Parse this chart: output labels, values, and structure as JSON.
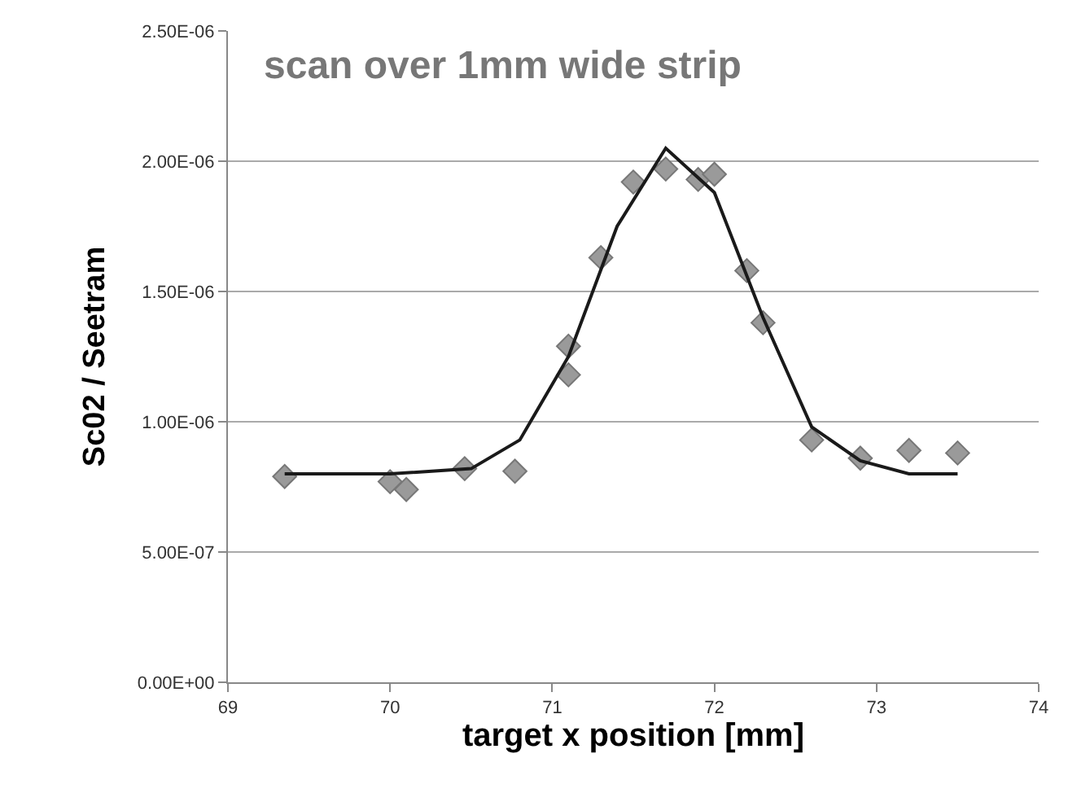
{
  "chart_data": {
    "type": "scatter",
    "title": "scan over 1mm wide strip",
    "xlabel": "target x position [mm]",
    "ylabel": "Sc02 / Seetram",
    "xlim": [
      69,
      74
    ],
    "xticks": [
      69,
      70,
      71,
      72,
      73,
      74
    ],
    "ylim": [
      0,
      2.5e-06
    ],
    "yticks": [
      {
        "value": 0,
        "label": "0.00E+00"
      },
      {
        "value": 5e-07,
        "label": "5.00E-07"
      },
      {
        "value": 1e-06,
        "label": "1.00E-06"
      },
      {
        "value": 1.5e-06,
        "label": "1.50E-06"
      },
      {
        "value": 2e-06,
        "label": "2.00E-06"
      },
      {
        "value": 2.5e-06,
        "label": "2.50E-06"
      }
    ],
    "grid": "y",
    "series": [
      {
        "marker": "diamond",
        "color": "#9a9a9a",
        "x": [
          69.35,
          70.0,
          70.1,
          70.46,
          70.77,
          71.1,
          71.1,
          71.3,
          71.5,
          71.7,
          71.9,
          72.0,
          72.2,
          72.3,
          72.6,
          72.9,
          73.2,
          73.5
        ],
        "values": [
          7.9e-07,
          7.7e-07,
          7.4e-07,
          8.2e-07,
          8.1e-07,
          1.18e-06,
          1.29e-06,
          1.63e-06,
          1.92e-06,
          1.97e-06,
          1.93e-06,
          1.95e-06,
          1.58e-06,
          1.38e-06,
          9.3e-07,
          8.6e-07,
          8.9e-07,
          8.8e-07
        ]
      },
      {
        "type": "line",
        "marker": "none",
        "color": "#1a1a1a",
        "x": [
          69.35,
          70.0,
          70.5,
          70.8,
          71.1,
          71.4,
          71.7,
          72.0,
          72.3,
          72.6,
          72.9,
          73.2,
          73.5
        ],
        "values": [
          8e-07,
          8e-07,
          8.2e-07,
          9.3e-07,
          1.25e-06,
          1.75e-06,
          2.05e-06,
          1.88e-06,
          1.4e-06,
          9.8e-07,
          8.5e-07,
          8e-07,
          8e-07
        ]
      }
    ]
  }
}
